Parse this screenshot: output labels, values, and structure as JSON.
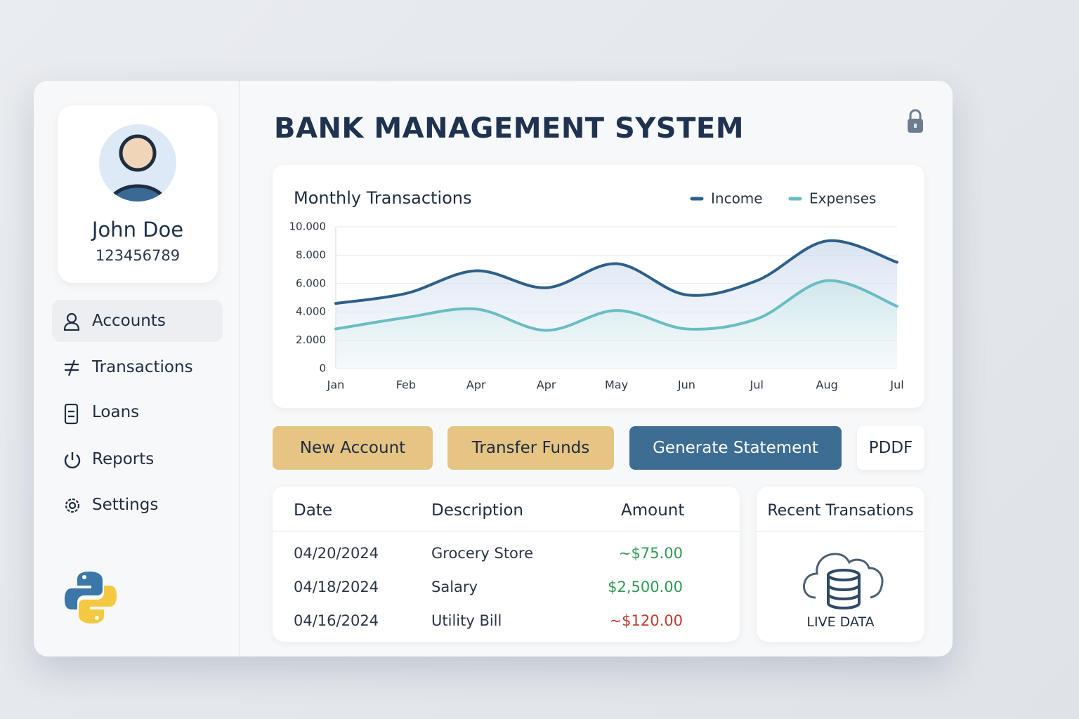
{
  "header": {
    "title": "BANK MANAGEMENT SYSTEM"
  },
  "profile": {
    "name": "John Doe",
    "account_number": "123456789"
  },
  "nav": [
    "Accounts",
    "Transactions",
    "Loans",
    "Reports",
    "Settings"
  ],
  "chart_data": {
    "type": "line",
    "title": "Monthly Transactions",
    "categories": [
      "Jan",
      "Feb",
      "Apr",
      "Apr",
      "May",
      "Jun",
      "Jul",
      "Aug",
      "Jul"
    ],
    "series": [
      {
        "name": "Income",
        "color": "#2e5f8a",
        "values": [
          4600,
          5300,
          6900,
          5700,
          7400,
          5200,
          6200,
          9000,
          7500
        ]
      },
      {
        "name": "Expenses",
        "color": "#6bbcc4",
        "values": [
          2800,
          3600,
          4200,
          2700,
          4100,
          2800,
          3500,
          6200,
          4400
        ]
      }
    ],
    "ylim": [
      0,
      10000
    ],
    "yticks": [
      0,
      {
        "value": 2000,
        "label": "2.000"
      },
      {
        "value": 4000,
        "label": "4.000"
      },
      {
        "value": 6000,
        "label": "6.000"
      },
      {
        "value": 8000,
        "label": "8.000"
      },
      {
        "value": 10000,
        "label": "10.000"
      }
    ],
    "grid": true,
    "legend": "top-right"
  },
  "buttons": [
    "New Account",
    "Transfer Funds",
    "Generate Statement",
    "PDDF"
  ],
  "table": {
    "columns": [
      "Date",
      "Description",
      "Amount"
    ],
    "rows": [
      [
        "04/20/2024",
        "Grocery Store",
        "~$75.00"
      ],
      [
        "04/18/2024",
        "Salary",
        "$2,500.00"
      ],
      [
        "04/16/2024",
        "Utility Bill",
        "~$120.00"
      ]
    ]
  },
  "live_panel": {
    "title": "Recent Transations",
    "label": "LIVE DATA"
  }
}
